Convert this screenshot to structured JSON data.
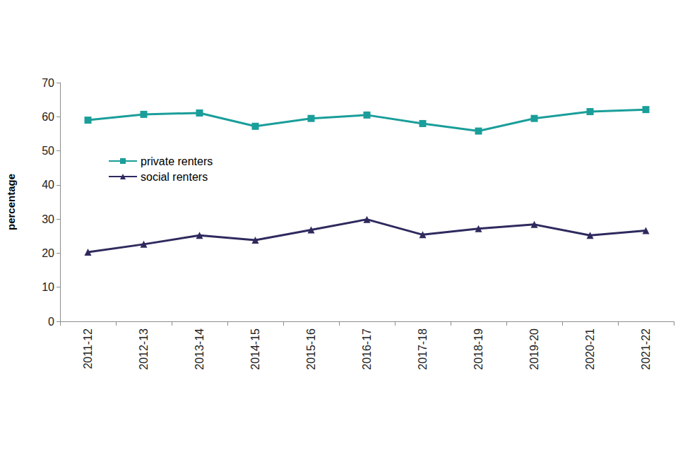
{
  "chart_data": {
    "type": "line",
    "categories": [
      "2011-12",
      "2012-13",
      "2013-14",
      "2014-15",
      "2015-16",
      "2016-17",
      "2017-18",
      "2018-19",
      "2019-20",
      "2020-21",
      "2021-22"
    ],
    "series": [
      {
        "name": "private renters",
        "color": "#1a9e9a",
        "marker": "square",
        "values": [
          59.0,
          60.7,
          61.1,
          57.2,
          59.5,
          60.5,
          58.0,
          55.8,
          59.5,
          61.5,
          62.1
        ]
      },
      {
        "name": "social renters",
        "color": "#2e2a5e",
        "marker": "triangle",
        "values": [
          20.3,
          22.6,
          25.2,
          23.8,
          26.8,
          29.9,
          25.4,
          27.2,
          28.4,
          25.2,
          26.6
        ]
      }
    ],
    "ylabel": "percentage",
    "ylim": [
      0,
      70
    ],
    "yticks": [
      0,
      10,
      20,
      30,
      40,
      50,
      60,
      70
    ],
    "grid": false,
    "legend": "upper left"
  }
}
